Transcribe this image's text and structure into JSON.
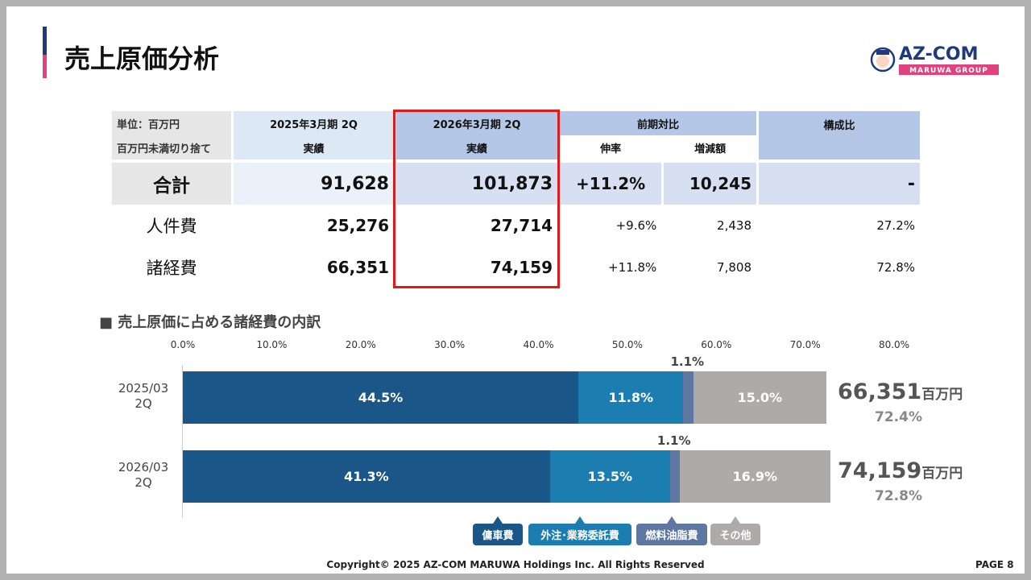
{
  "header": {
    "title": "売上原価分析",
    "logo_text": "AZ-COM",
    "logo_sub": "MARUWA GROUP"
  },
  "table": {
    "unit_note": "単位：百万円",
    "rounding_note": "百万円未満切り捨て",
    "col_prev": "2025年3月期 2Q",
    "col_curr": "2026年3月期 2Q",
    "actual": "実績",
    "col_yoy": "前期対比",
    "col_rate": "伸率",
    "col_diff": "増減額",
    "col_ratio": "構成比",
    "rows": [
      {
        "name": "合計",
        "prev": "91,628",
        "curr": "101,873",
        "rate": "+11.2%",
        "diff": "10,245",
        "ratio": "-"
      },
      {
        "name": "人件費",
        "prev": "25,276",
        "curr": "27,714",
        "rate": "+9.6%",
        "diff": "2,438",
        "ratio": "27.2%"
      },
      {
        "name": "諸経費",
        "prev": "66,351",
        "curr": "74,159",
        "rate": "+11.8%",
        "diff": "7,808",
        "ratio": "72.8%"
      }
    ]
  },
  "section_title": "■ 売上原価に占める諸経費の内訳",
  "chart_data": {
    "type": "bar",
    "orientation": "horizontal",
    "stacked": true,
    "xlim": [
      0,
      80
    ],
    "x_ticks": [
      "0.0%",
      "10.0%",
      "20.0%",
      "30.0%",
      "40.0%",
      "50.0%",
      "60.0%",
      "70.0%",
      "80.0%"
    ],
    "categories": [
      [
        "2025/03",
        "2Q"
      ],
      [
        "2026/03",
        "2Q"
      ]
    ],
    "series": [
      {
        "name": "傭車費",
        "color": "#1a5788",
        "values": [
          44.5,
          41.3
        ],
        "labels": [
          "44.5%",
          "41.3%"
        ]
      },
      {
        "name": "外注･業務委託費",
        "color": "#1b7db0",
        "values": [
          11.8,
          13.5
        ],
        "labels": [
          "11.8%",
          "13.5%"
        ]
      },
      {
        "name": "燃料油脂費",
        "color": "#5d77a0",
        "values": [
          1.1,
          1.1
        ],
        "labels": [
          "1.1%",
          "1.1%"
        ]
      },
      {
        "name": "その他",
        "color": "#aeaaa9",
        "values": [
          15.0,
          16.9
        ],
        "labels": [
          "15.0%",
          "16.9%"
        ]
      }
    ],
    "totals": [
      {
        "value": "66,351",
        "unit": "百万円",
        "pct": "72.4%"
      },
      {
        "value": "74,159",
        "unit": "百万円",
        "pct": "72.8%"
      }
    ],
    "legend_placement": "bottom"
  },
  "footer": {
    "copyright": "Copyright© 2025 AZ-COM MARUWA Holdings Inc. All Rights Reserved",
    "page": "PAGE 8"
  }
}
